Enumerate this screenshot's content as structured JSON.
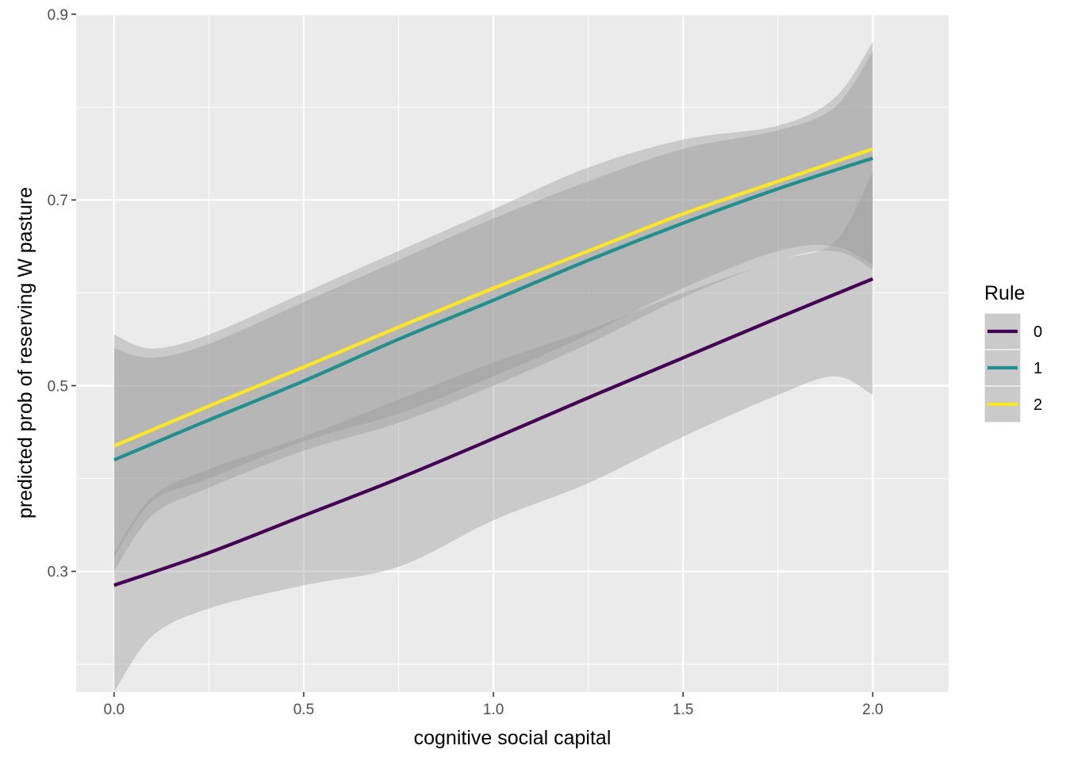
{
  "chart_data": {
    "type": "line",
    "xlabel": "cognitive social capital",
    "ylabel": "predicted prob of reserving W pasture",
    "xlim": [
      -0.1,
      2.2
    ],
    "ylim": [
      0.17,
      0.9
    ],
    "x_ticks": [
      0.0,
      0.5,
      1.0,
      1.5,
      2.0
    ],
    "x_tick_labels": [
      "0.0",
      "0.5",
      "1.0",
      "1.5",
      "2.0"
    ],
    "y_ticks": [
      0.3,
      0.5,
      0.7,
      0.9
    ],
    "y_tick_labels": [
      "0.3",
      "0.5",
      "0.7",
      "0.9"
    ],
    "grid": true,
    "legend": {
      "title": "Rule",
      "position": "right"
    },
    "series": [
      {
        "name": "0",
        "color": "#440154",
        "x": [
          0.0,
          0.25,
          0.5,
          0.75,
          1.0,
          1.25,
          1.5,
          1.75,
          2.0
        ],
        "y": [
          0.285,
          0.32,
          0.36,
          0.4,
          0.443,
          0.487,
          0.53,
          0.573,
          0.615
        ],
        "band_x": [
          0.0,
          0.1,
          0.25,
          0.5,
          0.75,
          1.0,
          1.25,
          1.5,
          1.75,
          1.9,
          2.0
        ],
        "band_lower": [
          0.17,
          0.23,
          0.26,
          0.285,
          0.305,
          0.355,
          0.395,
          0.445,
          0.49,
          0.51,
          0.49
        ],
        "band_upper": [
          0.32,
          0.38,
          0.41,
          0.445,
          0.485,
          0.525,
          0.56,
          0.6,
          0.635,
          0.655,
          0.73
        ]
      },
      {
        "name": "1",
        "color": "#21908C",
        "x": [
          0.0,
          0.25,
          0.5,
          0.75,
          1.0,
          1.25,
          1.5,
          1.75,
          2.0
        ],
        "y": [
          0.42,
          0.463,
          0.505,
          0.55,
          0.592,
          0.635,
          0.675,
          0.712,
          0.745
        ],
        "band_x": [
          0.0,
          0.1,
          0.25,
          0.5,
          0.75,
          1.0,
          1.25,
          1.5,
          1.75,
          1.9,
          2.0
        ],
        "band_lower": [
          0.3,
          0.36,
          0.39,
          0.43,
          0.46,
          0.5,
          0.545,
          0.595,
          0.635,
          0.645,
          0.625
        ],
        "band_upper": [
          0.54,
          0.53,
          0.545,
          0.59,
          0.635,
          0.68,
          0.72,
          0.755,
          0.775,
          0.8,
          0.86
        ]
      },
      {
        "name": "2",
        "color": "#FDE725",
        "x": [
          0.0,
          0.25,
          0.5,
          0.75,
          1.0,
          1.25,
          1.5,
          1.75,
          2.0
        ],
        "y": [
          0.435,
          0.478,
          0.52,
          0.563,
          0.605,
          0.645,
          0.685,
          0.72,
          0.755
        ],
        "band_x": [
          0.0,
          0.1,
          0.25,
          0.5,
          0.75,
          1.0,
          1.25,
          1.5,
          1.75,
          1.9,
          2.0
        ],
        "band_lower": [
          0.315,
          0.375,
          0.4,
          0.44,
          0.47,
          0.51,
          0.555,
          0.605,
          0.645,
          0.65,
          0.63
        ],
        "band_upper": [
          0.555,
          0.54,
          0.555,
          0.6,
          0.645,
          0.69,
          0.735,
          0.765,
          0.78,
          0.81,
          0.87
        ]
      }
    ]
  }
}
